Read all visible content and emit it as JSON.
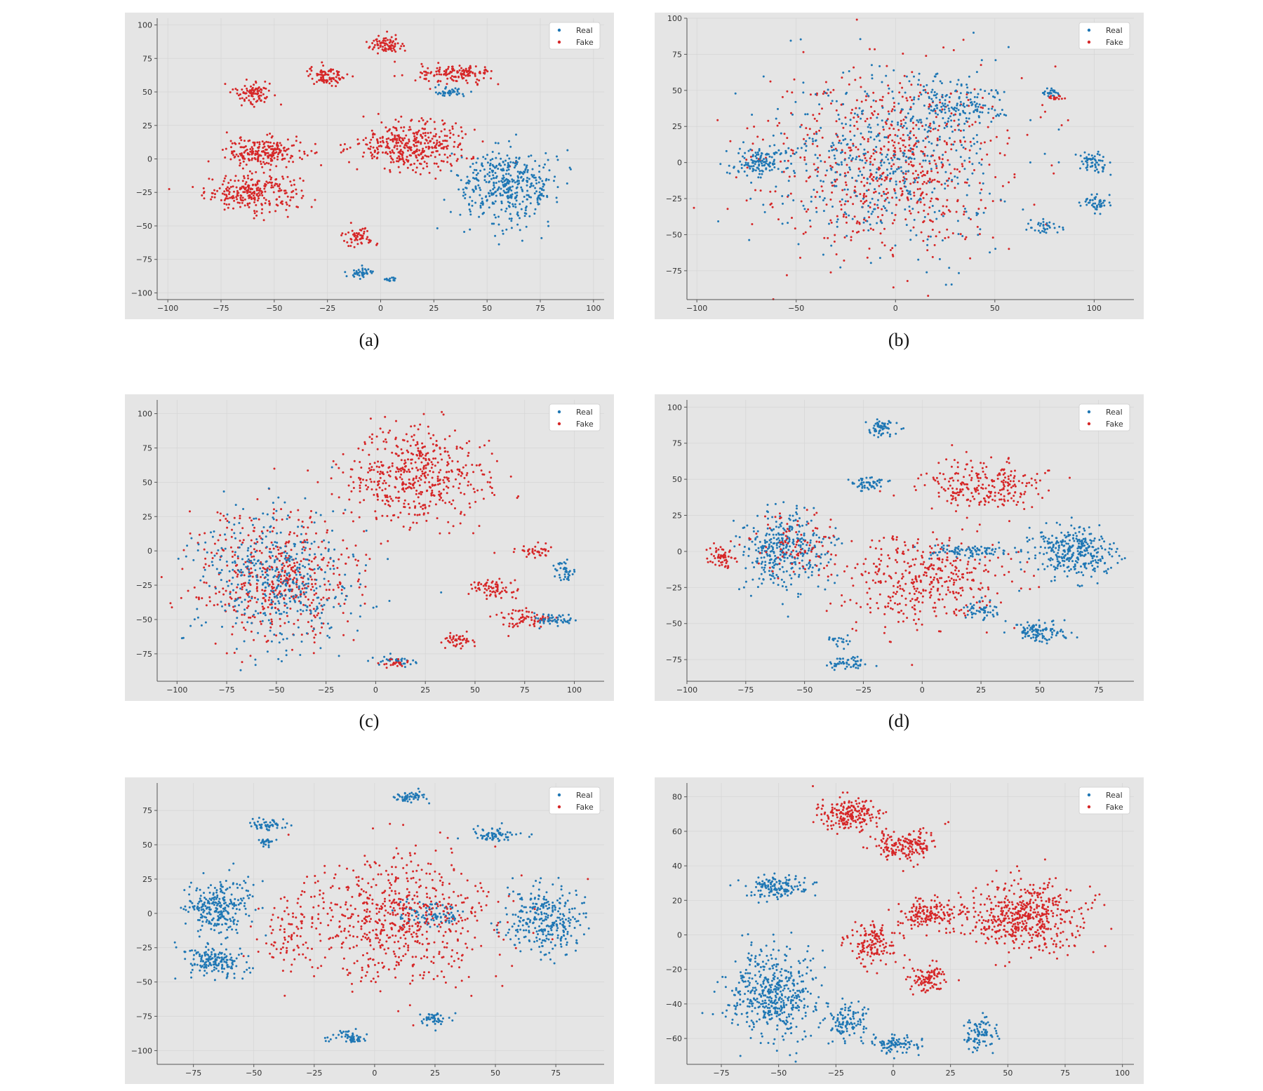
{
  "panels": [
    {
      "caption": "(a)",
      "colors": {
        "real": "#1f77b4",
        "fake": "#d62728"
      },
      "chart_data": {
        "type": "scatter",
        "legend": [
          "Real",
          "Fake"
        ],
        "legend_position": "top-right",
        "xlim": [
          -105,
          105
        ],
        "ylim": [
          -105,
          105
        ],
        "xticks": [
          -100,
          -75,
          -50,
          -25,
          0,
          25,
          50,
          75,
          100
        ],
        "yticks": [
          -100,
          -75,
          -50,
          -25,
          0,
          25,
          50,
          75,
          100
        ],
        "grid": true,
        "clusters": [
          {
            "s": "Fake",
            "cx": -60,
            "cy": -25,
            "rx": 25,
            "ry": 15,
            "n": 260
          },
          {
            "s": "Fake",
            "cx": -55,
            "cy": 5,
            "rx": 20,
            "ry": 12,
            "n": 220
          },
          {
            "s": "Fake",
            "cx": -60,
            "cy": 50,
            "rx": 10,
            "ry": 10,
            "n": 90
          },
          {
            "s": "Fake",
            "cx": -25,
            "cy": 62,
            "rx": 10,
            "ry": 8,
            "n": 90
          },
          {
            "s": "Fake",
            "cx": 3,
            "cy": 85,
            "rx": 10,
            "ry": 7,
            "n": 80
          },
          {
            "s": "Fake",
            "cx": 35,
            "cy": 63,
            "rx": 20,
            "ry": 8,
            "n": 140
          },
          {
            "s": "Real",
            "cx": 33,
            "cy": 50,
            "rx": 8,
            "ry": 4,
            "n": 40
          },
          {
            "s": "Fake",
            "cx": 15,
            "cy": 10,
            "rx": 30,
            "ry": 20,
            "n": 380
          },
          {
            "s": "Fake",
            "cx": -10,
            "cy": -58,
            "rx": 8,
            "ry": 7,
            "n": 60
          },
          {
            "s": "Real",
            "cx": -10,
            "cy": -85,
            "rx": 7,
            "ry": 4,
            "n": 40
          },
          {
            "s": "Real",
            "cx": 5,
            "cy": -90,
            "rx": 5,
            "ry": 2,
            "n": 15
          },
          {
            "s": "Real",
            "cx": 60,
            "cy": -20,
            "rx": 25,
            "ry": 30,
            "n": 420
          }
        ]
      }
    },
    {
      "caption": "(b)",
      "colors": {
        "real": "#1f77b4",
        "fake": "#d62728"
      },
      "chart_data": {
        "type": "scatter",
        "legend": [
          "Real",
          "Fake"
        ],
        "legend_position": "top-right",
        "xlim": [
          -105,
          120
        ],
        "ylim": [
          -95,
          100
        ],
        "xticks": [
          -100,
          -50,
          0,
          50,
          100
        ],
        "yticks": [
          -75,
          -50,
          -25,
          0,
          25,
          50,
          75,
          100
        ],
        "grid": true,
        "clusters": [
          {
            "s": "Fake",
            "cx": -5,
            "cy": 0,
            "rx": 70,
            "ry": 70,
            "n": 700
          },
          {
            "s": "Real",
            "cx": -5,
            "cy": 0,
            "rx": 70,
            "ry": 70,
            "n": 500
          },
          {
            "s": "Real",
            "cx": -70,
            "cy": 0,
            "rx": 15,
            "ry": 12,
            "n": 120
          },
          {
            "s": "Real",
            "cx": 30,
            "cy": 40,
            "rx": 25,
            "ry": 20,
            "n": 160
          },
          {
            "s": "Real",
            "cx": 100,
            "cy": 0,
            "rx": 8,
            "ry": 8,
            "n": 60
          },
          {
            "s": "Real",
            "cx": 100,
            "cy": -28,
            "rx": 8,
            "ry": 7,
            "n": 50
          },
          {
            "s": "Real",
            "cx": 78,
            "cy": 48,
            "rx": 5,
            "ry": 3,
            "n": 25
          },
          {
            "s": "Fake",
            "cx": 80,
            "cy": 45,
            "rx": 6,
            "ry": 2,
            "n": 15
          },
          {
            "s": "Real",
            "cx": 75,
            "cy": -45,
            "rx": 10,
            "ry": 5,
            "n": 35
          }
        ]
      }
    },
    {
      "caption": "(c)",
      "colors": {
        "real": "#1f77b4",
        "fake": "#d62728"
      },
      "chart_data": {
        "type": "scatter",
        "legend": [
          "Real",
          "Fake"
        ],
        "legend_position": "top-right",
        "xlim": [
          -110,
          115
        ],
        "ylim": [
          -95,
          110
        ],
        "xticks": [
          -100,
          -75,
          -50,
          -25,
          0,
          25,
          50,
          75,
          100
        ],
        "yticks": [
          -75,
          -50,
          -25,
          0,
          25,
          50,
          75,
          100
        ],
        "grid": true,
        "clusters": [
          {
            "s": "Fake",
            "cx": -50,
            "cy": -20,
            "rx": 45,
            "ry": 55,
            "n": 500
          },
          {
            "s": "Real",
            "cx": -50,
            "cy": -20,
            "rx": 45,
            "ry": 55,
            "n": 450
          },
          {
            "s": "Fake",
            "cx": 20,
            "cy": 55,
            "rx": 40,
            "ry": 40,
            "n": 500
          },
          {
            "s": "Fake",
            "cx": 60,
            "cy": -28,
            "rx": 12,
            "ry": 8,
            "n": 70
          },
          {
            "s": "Fake",
            "cx": 75,
            "cy": -50,
            "rx": 15,
            "ry": 8,
            "n": 70
          },
          {
            "s": "Real",
            "cx": 90,
            "cy": -50,
            "rx": 12,
            "ry": 5,
            "n": 50
          },
          {
            "s": "Real",
            "cx": 95,
            "cy": -15,
            "rx": 5,
            "ry": 10,
            "n": 40
          },
          {
            "s": "Fake",
            "cx": 80,
            "cy": 0,
            "rx": 10,
            "ry": 5,
            "n": 40
          },
          {
            "s": "Fake",
            "cx": 42,
            "cy": -65,
            "rx": 8,
            "ry": 6,
            "n": 45
          },
          {
            "s": "Real",
            "cx": 10,
            "cy": -80,
            "rx": 12,
            "ry": 4,
            "n": 35
          },
          {
            "s": "Fake",
            "cx": 10,
            "cy": -82,
            "rx": 8,
            "ry": 4,
            "n": 25
          }
        ]
      }
    },
    {
      "caption": "(d)",
      "colors": {
        "real": "#1f77b4",
        "fake": "#d62728"
      },
      "chart_data": {
        "type": "scatter",
        "legend": [
          "Real",
          "Fake"
        ],
        "legend_position": "top-right",
        "xlim": [
          -100,
          90
        ],
        "ylim": [
          -90,
          105
        ],
        "xticks": [
          -100,
          -75,
          -50,
          -25,
          0,
          25,
          50,
          75
        ],
        "yticks": [
          -75,
          -50,
          -25,
          0,
          25,
          50,
          75,
          100
        ],
        "grid": true,
        "clusters": [
          {
            "s": "Real",
            "cx": -18,
            "cy": 85,
            "rx": 8,
            "ry": 7,
            "n": 60
          },
          {
            "s": "Real",
            "cx": -23,
            "cy": 47,
            "rx": 8,
            "ry": 6,
            "n": 50
          },
          {
            "s": "Real",
            "cx": -58,
            "cy": 0,
            "rx": 20,
            "ry": 30,
            "n": 350
          },
          {
            "s": "Fake",
            "cx": -55,
            "cy": 5,
            "rx": 18,
            "ry": 25,
            "n": 90
          },
          {
            "s": "Fake",
            "cx": -85,
            "cy": -5,
            "rx": 7,
            "ry": 10,
            "n": 60
          },
          {
            "s": "Fake",
            "cx": 25,
            "cy": 45,
            "rx": 30,
            "ry": 20,
            "n": 250
          },
          {
            "s": "Fake",
            "cx": 0,
            "cy": -20,
            "rx": 40,
            "ry": 35,
            "n": 400
          },
          {
            "s": "Real",
            "cx": 65,
            "cy": 0,
            "rx": 20,
            "ry": 20,
            "n": 320
          },
          {
            "s": "Real",
            "cx": 50,
            "cy": -56,
            "rx": 12,
            "ry": 7,
            "n": 110
          },
          {
            "s": "Real",
            "cx": 25,
            "cy": -40,
            "rx": 8,
            "ry": 8,
            "n": 50
          },
          {
            "s": "Real",
            "cx": 20,
            "cy": 0,
            "rx": 20,
            "ry": 5,
            "n": 90
          },
          {
            "s": "Real",
            "cx": -32,
            "cy": -77,
            "rx": 10,
            "ry": 5,
            "n": 55
          },
          {
            "s": "Real",
            "cx": -35,
            "cy": -62,
            "rx": 5,
            "ry": 4,
            "n": 20
          }
        ]
      }
    },
    {
      "caption": "(e)",
      "colors": {
        "real": "#1f77b4",
        "fake": "#d62728"
      },
      "chart_data": {
        "type": "scatter",
        "legend": [
          "Real",
          "Fake"
        ],
        "legend_position": "top-right",
        "xlim": [
          -90,
          95
        ],
        "ylim": [
          -110,
          95
        ],
        "xticks": [
          -75,
          -50,
          -25,
          0,
          25,
          50,
          75
        ],
        "yticks": [
          -100,
          -75,
          -50,
          -25,
          0,
          25,
          50,
          75
        ],
        "grid": true,
        "clusters": [
          {
            "s": "Real",
            "cx": 15,
            "cy": 85,
            "rx": 7,
            "ry": 5,
            "n": 55
          },
          {
            "s": "Real",
            "cx": -45,
            "cy": 65,
            "rx": 8,
            "ry": 5,
            "n": 50
          },
          {
            "s": "Real",
            "cx": -45,
            "cy": 52,
            "rx": 5,
            "ry": 4,
            "n": 25
          },
          {
            "s": "Real",
            "cx": 50,
            "cy": 57,
            "rx": 12,
            "ry": 6,
            "n": 70
          },
          {
            "s": "Real",
            "cx": -65,
            "cy": 5,
            "rx": 15,
            "ry": 22,
            "n": 260
          },
          {
            "s": "Real",
            "cx": -67,
            "cy": -35,
            "rx": 14,
            "ry": 12,
            "n": 170
          },
          {
            "s": "Real",
            "cx": 70,
            "cy": -5,
            "rx": 17,
            "ry": 28,
            "n": 300
          },
          {
            "s": "Real",
            "cx": 25,
            "cy": 0,
            "rx": 15,
            "ry": 10,
            "n": 90
          },
          {
            "s": "Real",
            "cx": -10,
            "cy": -90,
            "rx": 8,
            "ry": 6,
            "n": 55
          },
          {
            "s": "Real",
            "cx": 25,
            "cy": -77,
            "rx": 7,
            "ry": 5,
            "n": 50
          },
          {
            "s": "Fake",
            "cx": 10,
            "cy": -5,
            "rx": 45,
            "ry": 50,
            "n": 650
          },
          {
            "s": "Fake",
            "cx": -35,
            "cy": -15,
            "rx": 12,
            "ry": 30,
            "n": 80
          }
        ]
      }
    },
    {
      "caption": "(f)",
      "colors": {
        "real": "#1f77b4",
        "fake": "#d62728"
      },
      "chart_data": {
        "type": "scatter",
        "legend": [
          "Real",
          "Fake"
        ],
        "legend_position": "top-right",
        "xlim": [
          -90,
          105
        ],
        "ylim": [
          -75,
          88
        ],
        "xticks": [
          -75,
          -50,
          -25,
          0,
          25,
          50,
          75,
          100
        ],
        "yticks": [
          -60,
          -40,
          -20,
          0,
          20,
          40,
          60,
          80
        ],
        "grid": true,
        "clusters": [
          {
            "s": "Fake",
            "cx": -20,
            "cy": 70,
            "rx": 15,
            "ry": 10,
            "n": 200
          },
          {
            "s": "Fake",
            "cx": 5,
            "cy": 53,
            "rx": 15,
            "ry": 10,
            "n": 170
          },
          {
            "s": "Fake",
            "cx": 15,
            "cy": 12,
            "rx": 15,
            "ry": 10,
            "n": 160
          },
          {
            "s": "Fake",
            "cx": -10,
            "cy": -5,
            "rx": 12,
            "ry": 14,
            "n": 140
          },
          {
            "s": "Fake",
            "cx": 15,
            "cy": -25,
            "rx": 10,
            "ry": 10,
            "n": 100
          },
          {
            "s": "Fake",
            "cx": 58,
            "cy": 10,
            "rx": 28,
            "ry": 22,
            "n": 520
          },
          {
            "s": "Real",
            "cx": -50,
            "cy": 28,
            "rx": 15,
            "ry": 7,
            "n": 140
          },
          {
            "s": "Real",
            "cx": -52,
            "cy": -35,
            "rx": 22,
            "ry": 28,
            "n": 480
          },
          {
            "s": "Real",
            "cx": -20,
            "cy": -50,
            "rx": 12,
            "ry": 14,
            "n": 110
          },
          {
            "s": "Real",
            "cx": 0,
            "cy": -63,
            "rx": 12,
            "ry": 5,
            "n": 90
          },
          {
            "s": "Real",
            "cx": 38,
            "cy": -57,
            "rx": 8,
            "ry": 10,
            "n": 90
          }
        ]
      }
    }
  ]
}
